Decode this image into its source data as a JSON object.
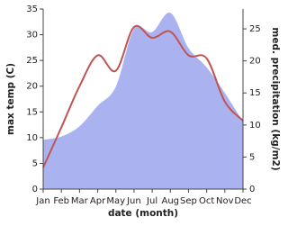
{
  "chart_data": {
    "type": "line-area",
    "x_label": "date (month)",
    "y_label": "max temp (C)",
    "y2_label": "med. precipitation (kg/m2)",
    "categories": [
      "Jan",
      "Feb",
      "Mar",
      "Apr",
      "May",
      "Jun",
      "Jul",
      "Aug",
      "Sep",
      "Oct",
      "Nov",
      "Dec"
    ],
    "series": [
      {
        "name": "max temp",
        "color": "#bf5452",
        "values": [
          4.2,
          12,
          20,
          26,
          23,
          31.5,
          29.4,
          30.6,
          26,
          25.4,
          17,
          13.3
        ]
      },
      {
        "name": "med. precipitation",
        "color": "#aab3f0",
        "axis": "y2",
        "values": [
          7.7,
          8.2,
          9.8,
          13,
          16,
          25,
          24.5,
          27.5,
          22,
          19,
          15,
          10.5
        ]
      }
    ],
    "ylim": [
      0,
      35
    ],
    "yticks": [
      0,
      5,
      10,
      15,
      20,
      25,
      30,
      35
    ],
    "y2lim": [
      0,
      28.1
    ],
    "y2ticks": [
      0,
      5,
      10,
      15,
      20,
      25
    ]
  }
}
